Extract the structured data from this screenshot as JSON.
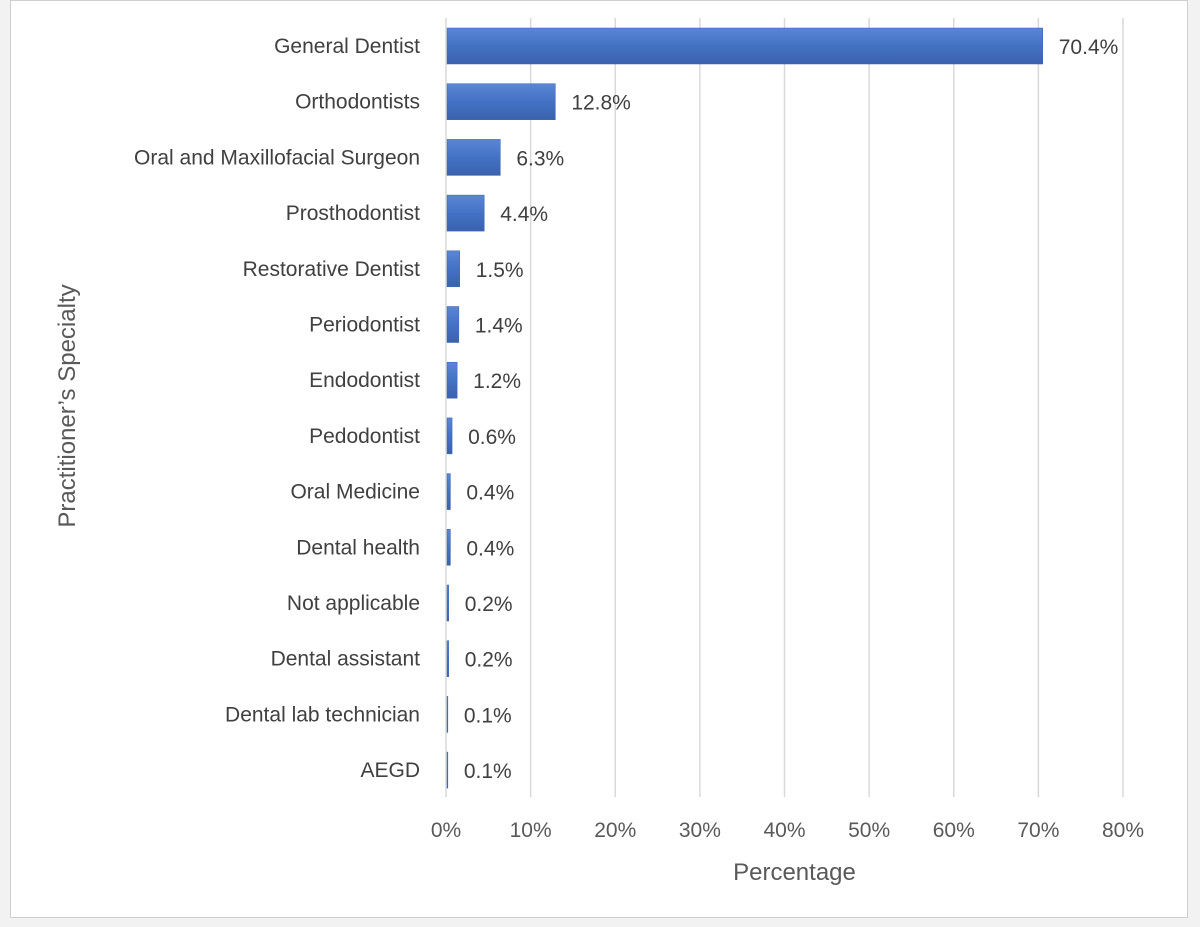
{
  "chart_data": {
    "type": "bar",
    "orientation": "horizontal",
    "title": "",
    "xlabel": "Percentage",
    "ylabel": "Practitioner’s Specialty",
    "xlim": [
      0,
      80
    ],
    "xticks": [
      0,
      10,
      20,
      30,
      40,
      50,
      60,
      70,
      80
    ],
    "xtick_labels": [
      "0%",
      "10%",
      "20%",
      "30%",
      "40%",
      "50%",
      "60%",
      "70%",
      "80%"
    ],
    "grid": true,
    "legend": "none",
    "bar_color": "#4472c4",
    "categories": [
      "General Dentist",
      "Orthodontists",
      "Oral and Maxillofacial Surgeon",
      "Prosthodontist",
      "Restorative Dentist",
      "Periodontist",
      "Endodontist",
      "Pedodontist",
      "Oral Medicine",
      "Dental health",
      "Not applicable",
      "Dental assistant",
      "Dental lab technician",
      "AEGD"
    ],
    "values": [
      70.4,
      12.8,
      6.3,
      4.4,
      1.5,
      1.4,
      1.2,
      0.6,
      0.4,
      0.4,
      0.2,
      0.2,
      0.1,
      0.1
    ],
    "value_labels": [
      "70.4%",
      "12.8%",
      "6.3%",
      "4.4%",
      "1.5%",
      "1.4%",
      "1.2%",
      "0.6%",
      "0.4%",
      "0.4%",
      "0.2%",
      "0.2%",
      "0.1%",
      "0.1%"
    ]
  }
}
